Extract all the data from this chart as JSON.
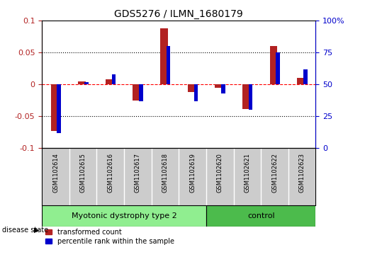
{
  "title": "GDS5276 / ILMN_1680179",
  "samples": [
    "GSM1102614",
    "GSM1102615",
    "GSM1102616",
    "GSM1102617",
    "GSM1102618",
    "GSM1102619",
    "GSM1102620",
    "GSM1102621",
    "GSM1102622",
    "GSM1102623"
  ],
  "transformed_count": [
    -0.073,
    0.005,
    0.008,
    -0.025,
    0.088,
    -0.012,
    -0.005,
    -0.038,
    0.06,
    0.01
  ],
  "percentile_rank_pct": [
    12,
    52,
    58,
    37,
    80,
    37,
    43,
    30,
    75,
    62
  ],
  "disease_groups": [
    {
      "label": "Myotonic dystrophy type 2",
      "start": 0,
      "end": 6,
      "color": "#90EE90"
    },
    {
      "label": "control",
      "start": 6,
      "end": 10,
      "color": "#4CBB4C"
    }
  ],
  "ylim_left": [
    -0.1,
    0.1
  ],
  "ylim_right": [
    0,
    100
  ],
  "yticks_left": [
    -0.1,
    -0.05,
    0.0,
    0.05,
    0.1
  ],
  "yticks_right": [
    0,
    25,
    50,
    75,
    100
  ],
  "bar_color_red": "#B22222",
  "bar_color_blue": "#0000CC",
  "background_color": "#FFFFFF",
  "label_red": "transformed count",
  "label_blue": "percentile rank within the sample",
  "disease_state_label": "disease state",
  "header_bg": "#CCCCCC",
  "red_line_color": "#FF0000",
  "dot_line_color": "#000000"
}
